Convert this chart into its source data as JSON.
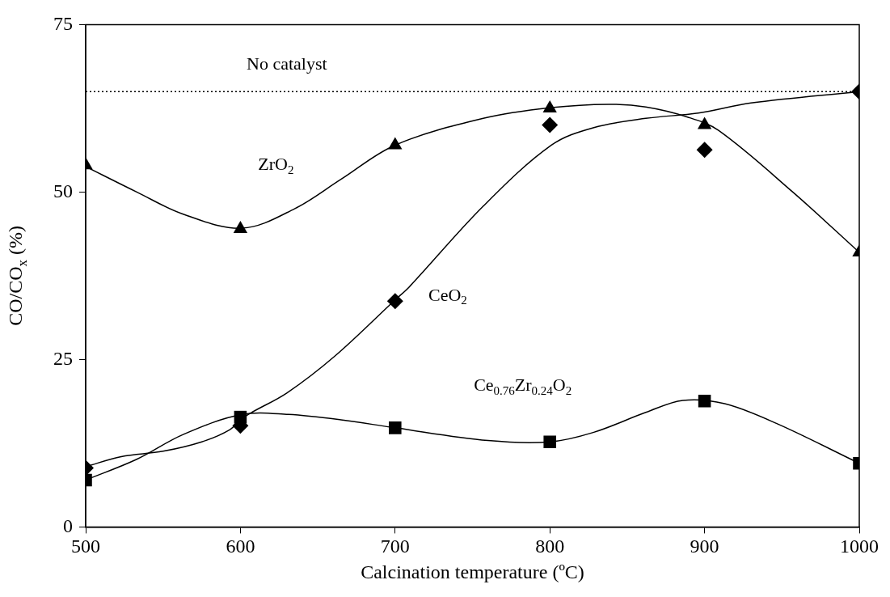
{
  "chart_data": {
    "type": "scatter",
    "xlabel": "Calcination temperature (ºC)",
    "ylabel": "CO/CO$_{x}$ (%)",
    "xlim": [
      500,
      1000
    ],
    "xticks": [
      500,
      600,
      700,
      800,
      900,
      1000
    ],
    "ylim": [
      0,
      75
    ],
    "yticks": [
      0,
      25,
      50,
      75
    ],
    "x": [
      500,
      600,
      700,
      800,
      900,
      1000
    ],
    "series": [
      {
        "name": "ZrO$_{2}$",
        "marker": "triangle",
        "color": "#000000",
        "values": [
          54,
          44.5,
          57,
          62.5,
          60,
          41
        ]
      },
      {
        "name": "CeO$_{2}$",
        "marker": "diamond",
        "color": "#000000",
        "values": [
          8.8,
          15.1,
          33.7,
          60,
          56.3,
          65
        ]
      },
      {
        "name": "Ce$_{0.76}$Zr$_{0.24}$O$_{2}$",
        "marker": "square",
        "color": "#000000",
        "values": [
          7,
          16.4,
          14.8,
          12.7,
          18.8,
          9.5
        ]
      },
      {
        "type": "line",
        "marker": "none",
        "color": "#000000",
        "x": [
          500,
          533,
          563,
          601,
          635,
          665,
          700,
          757,
          801,
          838,
          862,
          889,
          909,
          957,
          1000
        ],
        "values": [
          53.8,
          50,
          46.7,
          44.6,
          47.5,
          51.9,
          57,
          61,
          62.6,
          63.1,
          62.7,
          61.2,
          59.2,
          50,
          41
        ]
      },
      {
        "type": "line",
        "marker": "none",
        "color": "#000000",
        "x": [
          500,
          523,
          550,
          575,
          593,
          603,
          630,
          661,
          700,
          709,
          757,
          801,
          828,
          862,
          896,
          930,
          1000
        ],
        "values": [
          9,
          10.5,
          11.3,
          12.7,
          14.5,
          16.5,
          20,
          25.5,
          33.9,
          35.8,
          47.9,
          57,
          59.6,
          61,
          61.8,
          63.3,
          65
        ]
      },
      {
        "type": "line",
        "marker": "none",
        "color": "#000000",
        "x": [
          500,
          533,
          563,
          601,
          631,
          665,
          700,
          760,
          800,
          828,
          862,
          886,
          913,
          947,
          1000
        ],
        "values": [
          7,
          10.1,
          13.8,
          16.8,
          16.8,
          16,
          14.8,
          12.9,
          12.7,
          14.1,
          17.1,
          18.9,
          18.4,
          15.4,
          9.5
        ]
      }
    ],
    "ref_lines": [
      {
        "axis": "y",
        "value": 65,
        "label": "No catalyst",
        "color": "#000000",
        "line_style": "dotted"
      }
    ]
  }
}
